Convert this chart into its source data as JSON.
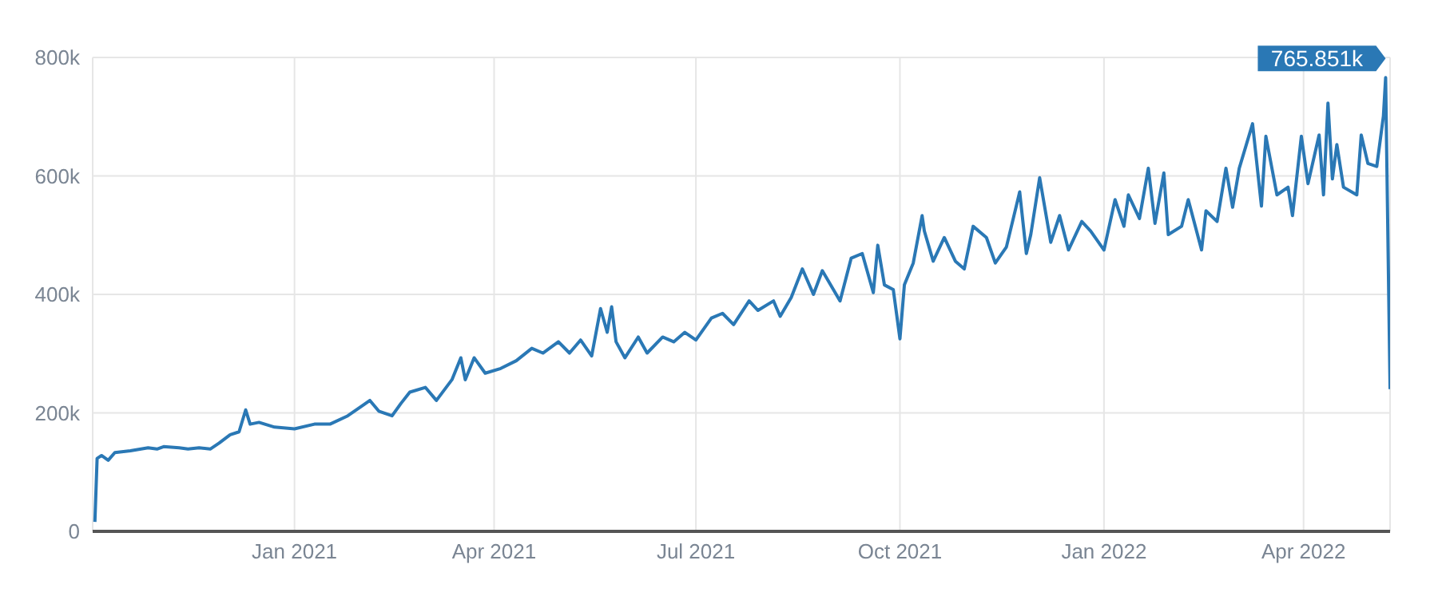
{
  "chart_data": {
    "type": "line",
    "x": [
      "2020-10-03",
      "2020-10-04",
      "2020-10-06",
      "2020-10-09",
      "2020-10-12",
      "2020-10-19",
      "2020-10-27",
      "2020-10-31",
      "2020-11-03",
      "2020-11-10",
      "2020-11-14",
      "2020-11-19",
      "2020-11-24",
      "2020-11-28",
      "2020-12-03",
      "2020-12-07",
      "2020-12-10",
      "2020-12-12",
      "2020-12-16",
      "2020-12-23",
      "2021-01-01",
      "2021-01-10",
      "2021-01-17",
      "2021-01-25",
      "2021-02-04",
      "2021-02-08",
      "2021-02-14",
      "2021-02-18",
      "2021-02-22",
      "2021-03-01",
      "2021-03-06",
      "2021-03-13",
      "2021-03-17",
      "2021-03-19",
      "2021-03-23",
      "2021-03-28",
      "2021-04-04",
      "2021-04-11",
      "2021-04-18",
      "2021-04-23",
      "2021-04-30",
      "2021-05-05",
      "2021-05-10",
      "2021-05-15",
      "2021-05-19",
      "2021-05-22",
      "2021-05-24",
      "2021-05-26",
      "2021-05-30",
      "2021-06-05",
      "2021-06-09",
      "2021-06-16",
      "2021-06-21",
      "2021-06-26",
      "2021-07-01",
      "2021-07-08",
      "2021-07-13",
      "2021-07-18",
      "2021-07-25",
      "2021-07-29",
      "2021-08-05",
      "2021-08-08",
      "2021-08-13",
      "2021-08-18",
      "2021-08-23",
      "2021-08-27",
      "2021-09-04",
      "2021-09-09",
      "2021-09-14",
      "2021-09-19",
      "2021-09-21",
      "2021-09-24",
      "2021-09-28",
      "2021-10-01",
      "2021-10-03",
      "2021-10-07",
      "2021-10-11",
      "2021-10-12",
      "2021-10-16",
      "2021-10-21",
      "2021-10-26",
      "2021-10-30",
      "2021-11-03",
      "2021-11-09",
      "2021-11-13",
      "2021-11-18",
      "2021-11-24",
      "2021-11-27",
      "2021-11-29",
      "2021-12-03",
      "2021-12-08",
      "2021-12-12",
      "2021-12-16",
      "2021-12-22",
      "2021-12-26",
      "2022-01-01",
      "2022-01-06",
      "2022-01-10",
      "2022-01-12",
      "2022-01-17",
      "2022-01-21",
      "2022-01-24",
      "2022-01-28",
      "2022-01-30",
      "2022-02-05",
      "2022-02-08",
      "2022-02-14",
      "2022-02-16",
      "2022-02-21",
      "2022-02-25",
      "2022-02-28",
      "2022-03-03",
      "2022-03-09",
      "2022-03-13",
      "2022-03-15",
      "2022-03-20",
      "2022-03-25",
      "2022-03-27",
      "2022-03-31",
      "2022-04-03",
      "2022-04-08",
      "2022-04-10",
      "2022-04-12",
      "2022-04-14",
      "2022-04-16",
      "2022-04-19",
      "2022-04-25",
      "2022-04-27",
      "2022-04-30",
      "2022-05-04",
      "2022-05-07",
      "2022-05-08",
      "2022-05-10"
    ],
    "series": [
      {
        "color": "#2a78b5",
        "values": [
          16000,
          123000,
          128000,
          120000,
          133000,
          136000,
          141000,
          139000,
          143000,
          141000,
          139000,
          141000,
          139000,
          149000,
          163000,
          168000,
          205000,
          181000,
          184000,
          176000,
          173000,
          181000,
          181000,
          195000,
          221000,
          203000,
          195000,
          216000,
          235000,
          243000,
          221000,
          256000,
          293000,
          256000,
          293000,
          267000,
          275000,
          288000,
          309000,
          301000,
          320000,
          301000,
          323000,
          296000,
          376000,
          336000,
          379000,
          320000,
          293000,
          328000,
          301000,
          328000,
          320000,
          336000,
          323000,
          360000,
          368000,
          349000,
          389000,
          373000,
          389000,
          363000,
          395000,
          443000,
          400000,
          440000,
          389000,
          461000,
          469000,
          403000,
          483000,
          416000,
          408000,
          325000,
          416000,
          453000,
          533000,
          507000,
          456000,
          496000,
          456000,
          443000,
          515000,
          496000,
          453000,
          480000,
          573000,
          469000,
          501000,
          597000,
          488000,
          533000,
          475000,
          523000,
          507000,
          475000,
          560000,
          515000,
          568000,
          528000,
          613000,
          520000,
          605000,
          501000,
          515000,
          560000,
          475000,
          541000,
          523000,
          613000,
          547000,
          613000,
          688000,
          549000,
          667000,
          568000,
          581000,
          533000,
          667000,
          587000,
          669000,
          568000,
          723000,
          595000,
          653000,
          581000,
          568000,
          669000,
          621000,
          616000,
          701000,
          765851,
          240000
        ]
      }
    ],
    "xlim": [
      "2020-10-02",
      "2022-05-10"
    ],
    "xticks": [
      {
        "value": "2021-01-01",
        "label": "Jan 2021"
      },
      {
        "value": "2021-04-01",
        "label": "Apr 2021"
      },
      {
        "value": "2021-07-01",
        "label": "Jul 2021"
      },
      {
        "value": "2021-10-01",
        "label": "Oct 2021"
      },
      {
        "value": "2022-01-01",
        "label": "Jan 2022"
      },
      {
        "value": "2022-04-01",
        "label": "Apr 2022"
      }
    ],
    "ylim": [
      0,
      800000
    ],
    "yticks": [
      0,
      {
        "value": 200000,
        "label": "200k"
      },
      {
        "value": 400000,
        "label": "400k"
      },
      {
        "value": 600000,
        "label": "600k"
      },
      {
        "value": 800000,
        "label": "800k"
      }
    ],
    "grid": true,
    "annotations": [
      {
        "text": "765.851k",
        "x": "2022-05-08",
        "y": 765851
      }
    ]
  }
}
